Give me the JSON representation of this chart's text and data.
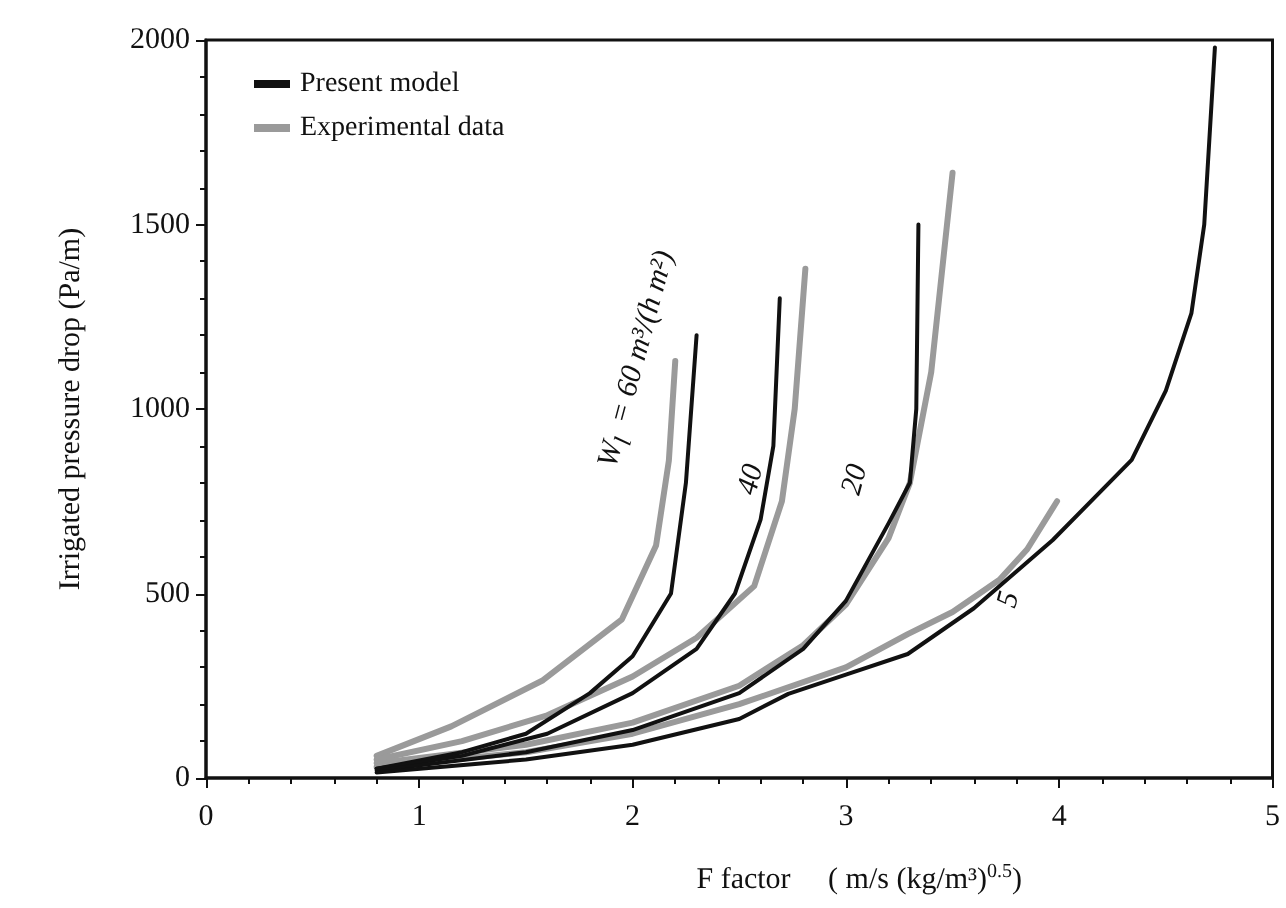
{
  "chart_data": {
    "type": "line",
    "xlabel": "F factor     ( m/s (kg/m³)$^{0.5}$)",
    "ylabel": "Irrigated pressure drop (Pa/m)",
    "xlim": [
      0,
      5
    ],
    "xticks": [
      0,
      1,
      2,
      3,
      4,
      5
    ],
    "ylim": [
      0,
      2000
    ],
    "yticks": [
      0,
      500,
      1000,
      1500,
      2000
    ],
    "grid": false,
    "legend": "top left",
    "marker": "none",
    "line_style": "solid",
    "series": [
      {
        "name": "Present model",
        "color": "#111111",
        "x": [
          0.8,
          1.2,
          1.5,
          1.8,
          2.0,
          2.18,
          2.25,
          2.3
        ],
        "values": [
          25,
          70,
          120,
          230,
          330,
          500,
          800,
          1200
        ]
      },
      {
        "name": "Experimental data",
        "color": "#9a9a9a",
        "x": [
          0.8,
          1.15,
          1.58,
          1.95,
          2.11,
          2.17,
          2.2
        ],
        "values": [
          60,
          140,
          265,
          430,
          630,
          860,
          1130
        ]
      },
      {
        "color": "#111111",
        "x": [
          0.8,
          1.2,
          1.6,
          2.0,
          2.3,
          2.48,
          2.6,
          2.66,
          2.69
        ],
        "values": [
          25,
          60,
          120,
          230,
          350,
          500,
          700,
          900,
          1300
        ]
      },
      {
        "color": "#9a9a9a",
        "x": [
          0.8,
          1.2,
          1.6,
          2.0,
          2.3,
          2.57,
          2.7,
          2.76,
          2.81
        ],
        "values": [
          50,
          100,
          170,
          275,
          380,
          520,
          750,
          1000,
          1380
        ]
      },
      {
        "color": "#111111",
        "x": [
          0.8,
          1.5,
          2.0,
          2.5,
          2.8,
          3.0,
          3.2,
          3.3,
          3.33,
          3.34
        ],
        "values": [
          20,
          70,
          130,
          230,
          350,
          480,
          690,
          800,
          1000,
          1500
        ]
      },
      {
        "color": "#9a9a9a",
        "x": [
          0.8,
          1.5,
          2.0,
          2.5,
          2.8,
          3.0,
          3.2,
          3.3,
          3.4,
          3.5
        ],
        "values": [
          40,
          90,
          150,
          250,
          360,
          470,
          650,
          800,
          1100,
          1640
        ]
      },
      {
        "color": "#111111",
        "x": [
          0.8,
          1.5,
          2.0,
          2.5,
          2.73,
          3.0,
          3.29,
          3.6,
          3.97,
          4.34,
          4.5,
          4.62,
          4.68,
          4.73
        ],
        "values": [
          15,
          50,
          90,
          160,
          228,
          280,
          336,
          460,
          645,
          862,
          1050,
          1260,
          1500,
          1980
        ]
      },
      {
        "color": "#9a9a9a",
        "x": [
          0.8,
          1.5,
          2.0,
          2.5,
          3.0,
          3.29,
          3.5,
          3.72,
          3.85,
          3.99
        ],
        "values": [
          30,
          70,
          120,
          200,
          300,
          390,
          450,
          537,
          620,
          750
        ]
      }
    ],
    "annotations": [
      "W$_{l}$ = 60 m³/(h m²)",
      "40",
      "20",
      "5"
    ]
  }
}
